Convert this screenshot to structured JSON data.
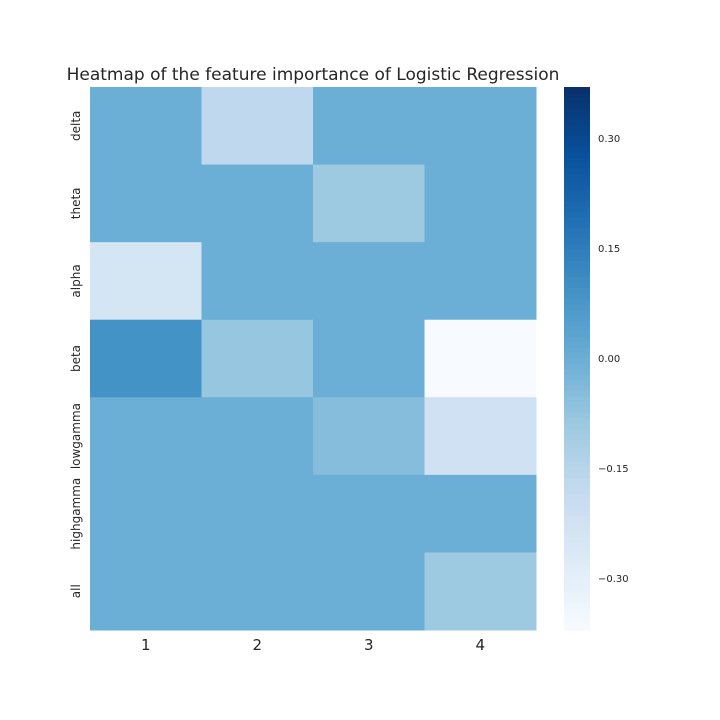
{
  "chart_data": {
    "type": "heatmap",
    "title": "Heatmap of the feature importance of Logistic Regression",
    "xlabel": "",
    "ylabel": "",
    "x_categories": [
      "1",
      "2",
      "3",
      "4"
    ],
    "y_categories": [
      "delta",
      "theta",
      "alpha",
      "beta",
      "lowgamma",
      "highgamma",
      "all"
    ],
    "values": [
      [
        0.0,
        -0.17,
        0.0,
        0.0
      ],
      [
        0.0,
        0.0,
        -0.09,
        0.0
      ],
      [
        -0.24,
        0.0,
        0.0,
        0.0
      ],
      [
        0.09,
        -0.08,
        0.0,
        -0.37
      ],
      [
        0.0,
        0.0,
        -0.05,
        -0.22
      ],
      [
        0.0,
        0.0,
        0.0,
        0.0
      ],
      [
        0.0,
        0.0,
        0.0,
        -0.09
      ]
    ],
    "colormap": "Blues",
    "vmin": -0.37,
    "vmax": 0.37,
    "colorbar_ticks": [
      0.3,
      0.15,
      0.0,
      -0.15,
      -0.3
    ],
    "colorbar_tick_labels": [
      "0.30",
      "0.15",
      "0.00",
      "−0.15",
      "−0.30"
    ],
    "grid": false,
    "colors": {
      "background": "#ffffff",
      "text": "#262626"
    }
  }
}
